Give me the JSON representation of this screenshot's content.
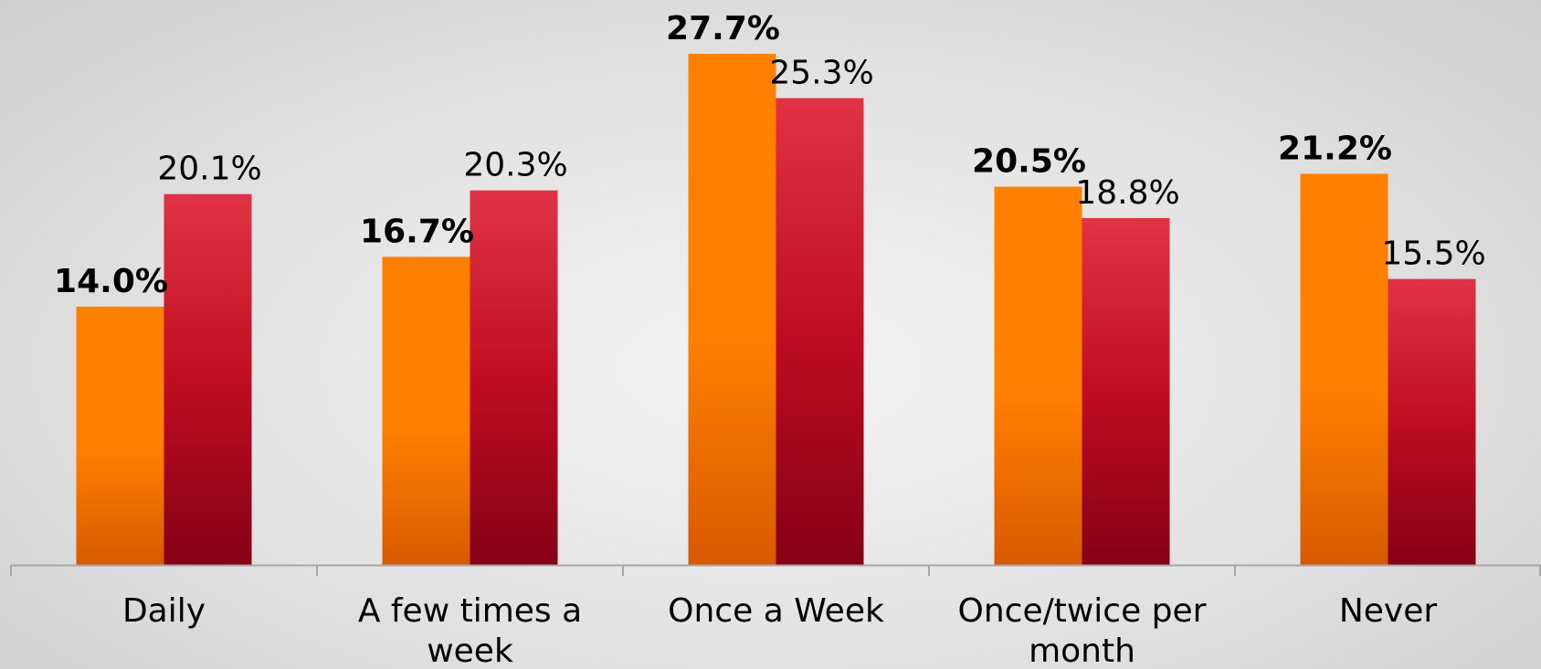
{
  "chart_data": {
    "type": "bar",
    "categories": [
      "Daily",
      "A few times a week",
      "Once a Week",
      "Once/twice per month",
      "Never"
    ],
    "category_label_lines": [
      [
        "Daily"
      ],
      [
        "A few times a",
        "week"
      ],
      [
        "Once a Week"
      ],
      [
        "Once/twice per",
        "month"
      ],
      [
        "Never"
      ]
    ],
    "series": [
      {
        "values": [
          14.0,
          16.7,
          27.7,
          20.5,
          21.2
        ],
        "labels": [
          "14.0%",
          "16.7%",
          "27.7%",
          "20.5%",
          "21.2%"
        ],
        "color_top": "#ff8000",
        "color_bottom": "#d85a00",
        "label_weight": "bold"
      },
      {
        "values": [
          20.1,
          20.3,
          25.3,
          18.8,
          15.5
        ],
        "labels": [
          "20.1%",
          "20.3%",
          "25.3%",
          "18.8%",
          "15.5%"
        ],
        "color_top": "#e03345",
        "color_mid": "#c00d22",
        "color_bottom": "#850016",
        "label_weight": "normal"
      }
    ],
    "ylim": [
      0,
      27.7
    ],
    "grid": false,
    "legend": "none",
    "axis_color": "#a6a6a6"
  }
}
